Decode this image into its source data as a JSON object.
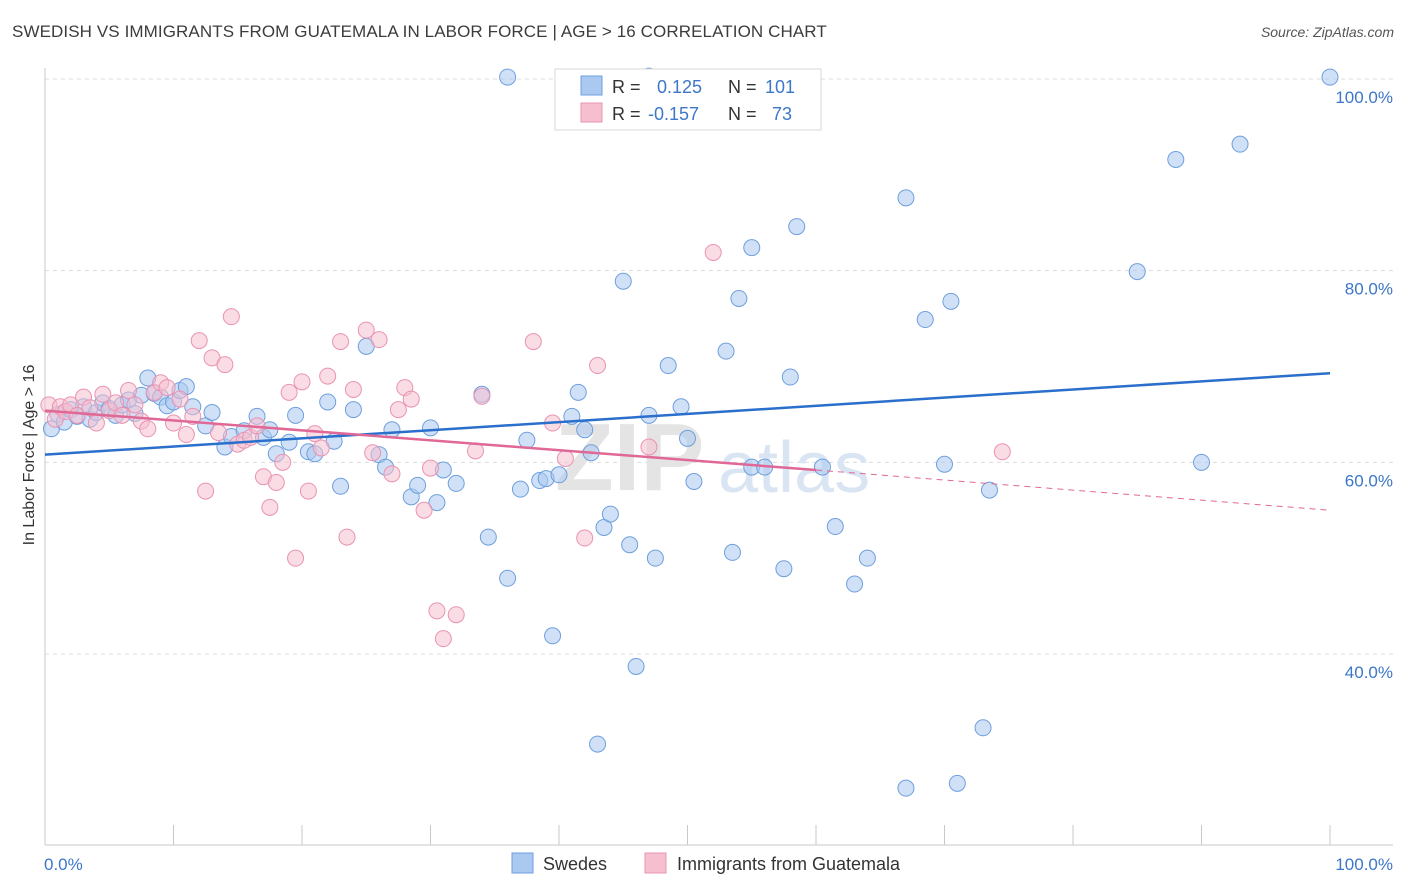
{
  "header": {
    "title": "SWEDISH VS IMMIGRANTS FROM GUATEMALA IN LABOR FORCE | AGE > 16 CORRELATION CHART",
    "source": "Source: ZipAtlas.com"
  },
  "watermark": {
    "left": "ZIP",
    "right": "atlas"
  },
  "legend": {
    "r_label": "R =",
    "n_label": "N =",
    "rows": [
      {
        "r": "0.125",
        "n": "101"
      },
      {
        "r": "-0.157",
        "n": "73"
      }
    ]
  },
  "chart_data": {
    "type": "scatter",
    "title": "SWEDISH VS IMMIGRANTS FROM GUATEMALA IN LABOR FORCE | AGE > 16 CORRELATION CHART",
    "ylabel": "In Labor Force | Age > 16",
    "xlim": [
      0,
      100
    ],
    "ylim": [
      20,
      101
    ],
    "x_tick_labels": [
      "0.0%",
      "100.0%"
    ],
    "y_ticks": [
      {
        "value": 40,
        "label": "40.0%"
      },
      {
        "value": 60,
        "label": "60.0%"
      },
      {
        "value": 80,
        "label": "80.0%"
      },
      {
        "value": 100,
        "label": "100.0%"
      }
    ],
    "grid": true,
    "legend_position": "top-center",
    "colors": {
      "swedes_fill": "#a9c9f0",
      "swedes_stroke": "#6e9fdc",
      "swedes_line": "#2a6fcb",
      "guatemala_fill": "#f6bfd0",
      "guatemala_stroke": "#e993b2",
      "guatemala_line": "#e06896"
    },
    "series": [
      {
        "name": "Swedes",
        "r": 0.125,
        "n": 101,
        "trend": {
          "x": [
            0,
            100
          ],
          "y": [
            60.8,
            69.3
          ]
        },
        "points": [
          [
            0.5,
            63.5
          ],
          [
            1,
            65
          ],
          [
            1.5,
            64.2
          ],
          [
            2,
            65.5
          ],
          [
            2.5,
            64.8
          ],
          [
            3,
            65.8
          ],
          [
            3.5,
            64.5
          ],
          [
            4,
            65.2
          ],
          [
            4.5,
            66.2
          ],
          [
            5,
            65.6
          ],
          [
            5.5,
            64.9
          ],
          [
            6,
            66
          ],
          [
            6.5,
            66.5
          ],
          [
            7,
            65.1
          ],
          [
            7.5,
            67
          ],
          [
            8,
            68.8
          ],
          [
            8.5,
            67.2
          ],
          [
            9,
            66.8
          ],
          [
            9.5,
            65.9
          ],
          [
            10,
            66.3
          ],
          [
            10.5,
            67.5
          ],
          [
            11,
            67.9
          ],
          [
            11.5,
            65.8
          ],
          [
            12.5,
            63.8
          ],
          [
            13,
            65.2
          ],
          [
            14,
            61.6
          ],
          [
            14.5,
            62.7
          ],
          [
            15.5,
            63.3
          ],
          [
            16.5,
            64.8
          ],
          [
            17,
            62.6
          ],
          [
            17.5,
            63.4
          ],
          [
            18,
            60.9
          ],
          [
            19,
            62.1
          ],
          [
            19.5,
            64.9
          ],
          [
            20.5,
            61.1
          ],
          [
            21,
            60.9
          ],
          [
            22,
            66.3
          ],
          [
            22.5,
            62.2
          ],
          [
            23,
            57.5
          ],
          [
            24,
            65.5
          ],
          [
            25,
            72.1
          ],
          [
            26,
            60.8
          ],
          [
            26.5,
            59.5
          ],
          [
            27,
            63.4
          ],
          [
            28.5,
            56.4
          ],
          [
            29,
            57.6
          ],
          [
            30,
            63.6
          ],
          [
            30.5,
            55.8
          ],
          [
            31,
            59.2
          ],
          [
            32,
            57.8
          ],
          [
            34,
            67.1
          ],
          [
            34.5,
            52.2
          ],
          [
            36,
            47.9
          ],
          [
            37,
            57.2
          ],
          [
            37.5,
            62.3
          ],
          [
            38.5,
            58.1
          ],
          [
            39,
            58.3
          ],
          [
            39.5,
            41.9
          ],
          [
            40,
            58.7
          ],
          [
            41,
            64.8
          ],
          [
            41.5,
            67.3
          ],
          [
            42,
            63.4
          ],
          [
            42.5,
            61
          ],
          [
            43,
            30.6
          ],
          [
            43.5,
            53.2
          ],
          [
            44,
            54.6
          ],
          [
            45,
            78.9
          ],
          [
            45.5,
            51.4
          ],
          [
            46,
            38.7
          ],
          [
            47,
            64.9
          ],
          [
            47.5,
            50.0
          ],
          [
            48.5,
            70.1
          ],
          [
            49.5,
            65.8
          ],
          [
            50,
            62.5
          ],
          [
            50.5,
            58.0
          ],
          [
            53,
            71.6
          ],
          [
            53.5,
            50.6
          ],
          [
            54,
            77.1
          ],
          [
            55,
            82.4
          ],
          [
            55,
            59.5
          ],
          [
            56,
            59.5
          ],
          [
            57.5,
            48.9
          ],
          [
            58,
            68.9
          ],
          [
            58.5,
            84.6
          ],
          [
            60.5,
            59.5
          ],
          [
            61.5,
            53.3
          ],
          [
            63,
            47.3
          ],
          [
            64,
            50.0
          ],
          [
            67,
            87.6
          ],
          [
            67,
            26.0
          ],
          [
            68.5,
            74.9
          ],
          [
            70,
            59.8
          ],
          [
            70.5,
            76.8
          ],
          [
            71,
            26.5
          ],
          [
            73,
            32.3
          ],
          [
            73.5,
            57.1
          ],
          [
            85,
            79.9
          ],
          [
            88,
            91.6
          ],
          [
            90,
            60.0
          ],
          [
            93,
            93.2
          ],
          [
            36,
            100.2
          ],
          [
            47,
            100.3
          ],
          [
            100,
            100.2
          ]
        ]
      },
      {
        "name": "Immigrants from Guatemala",
        "r": -0.157,
        "n": 73,
        "trend": {
          "x": [
            0,
            60
          ],
          "y": [
            65.4,
            59.2
          ]
        },
        "trend_extension": {
          "x": [
            60,
            100
          ],
          "y": [
            59.2,
            55.0
          ]
        },
        "points": [
          [
            0.3,
            66
          ],
          [
            0.8,
            64.5
          ],
          [
            1.2,
            65.8
          ],
          [
            1.6,
            65.3
          ],
          [
            2,
            66
          ],
          [
            2.5,
            64.9
          ],
          [
            3,
            66.8
          ],
          [
            3.5,
            65.7
          ],
          [
            4,
            64.1
          ],
          [
            4.5,
            67.1
          ],
          [
            5,
            65.4
          ],
          [
            5.5,
            66.2
          ],
          [
            6,
            64.9
          ],
          [
            6.5,
            67.5
          ],
          [
            7,
            66
          ],
          [
            7.5,
            64.3
          ],
          [
            8,
            63.5
          ],
          [
            8.5,
            67.3
          ],
          [
            9,
            68.3
          ],
          [
            9.5,
            67.8
          ],
          [
            10,
            64.1
          ],
          [
            10.5,
            66.6
          ],
          [
            11,
            62.9
          ],
          [
            11.5,
            64.8
          ],
          [
            12,
            72.7
          ],
          [
            12.5,
            57
          ],
          [
            13,
            70.9
          ],
          [
            13.5,
            63.1
          ],
          [
            14,
            70.2
          ],
          [
            14.5,
            75.2
          ],
          [
            15,
            61.9
          ],
          [
            15.5,
            62.3
          ],
          [
            16,
            62.6
          ],
          [
            16.5,
            63.8
          ],
          [
            17,
            58.5
          ],
          [
            17.5,
            55.3
          ],
          [
            18,
            57.9
          ],
          [
            18.5,
            60
          ],
          [
            19,
            67.3
          ],
          [
            19.5,
            50
          ],
          [
            20,
            68.4
          ],
          [
            20.5,
            57
          ],
          [
            21,
            63
          ],
          [
            21.5,
            61.5
          ],
          [
            22,
            69
          ],
          [
            23,
            72.6
          ],
          [
            23.5,
            52.2
          ],
          [
            24,
            67.6
          ],
          [
            25,
            73.8
          ],
          [
            25.5,
            61
          ],
          [
            26,
            72.8
          ],
          [
            27,
            58.8
          ],
          [
            27.5,
            65.5
          ],
          [
            28,
            67.8
          ],
          [
            28.5,
            66.6
          ],
          [
            29.5,
            55
          ],
          [
            30,
            59.4
          ],
          [
            30.5,
            44.5
          ],
          [
            31,
            41.6
          ],
          [
            32,
            44.1
          ],
          [
            33.5,
            61.2
          ],
          [
            34,
            66.9
          ],
          [
            38,
            72.6
          ],
          [
            39.5,
            64.1
          ],
          [
            40.5,
            60.4
          ],
          [
            42,
            52.1
          ],
          [
            43,
            70.1
          ],
          [
            47,
            61.6
          ],
          [
            52,
            81.9
          ],
          [
            74.5,
            61.1
          ]
        ]
      }
    ]
  },
  "bottom_legend": {
    "items": [
      {
        "label": "Swedes"
      },
      {
        "label": "Immigrants from Guatemala"
      }
    ]
  }
}
